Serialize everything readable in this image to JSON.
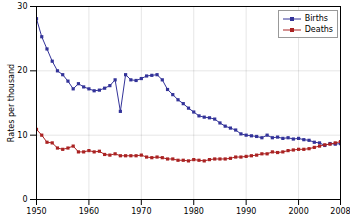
{
  "chart_data": {
    "type": "line",
    "y_label": "Rates per thousand",
    "x": [
      1950,
      1951,
      1952,
      1953,
      1954,
      1955,
      1956,
      1957,
      1958,
      1959,
      1960,
      1961,
      1962,
      1963,
      1964,
      1965,
      1966,
      1967,
      1968,
      1969,
      1970,
      1971,
      1972,
      1973,
      1974,
      1975,
      1976,
      1977,
      1978,
      1979,
      1980,
      1981,
      1982,
      1983,
      1984,
      1985,
      1986,
      1987,
      1988,
      1989,
      1990,
      1991,
      1992,
      1993,
      1994,
      1995,
      1996,
      1997,
      1998,
      1999,
      2000,
      2001,
      2002,
      2003,
      2004,
      2005,
      2006,
      2007,
      2008
    ],
    "series": [
      {
        "name": "Births",
        "color": "#333399",
        "marker": "square",
        "line_style": "solid",
        "values": [
          28.1,
          25.3,
          23.4,
          21.5,
          20.0,
          19.4,
          18.4,
          17.2,
          18.0,
          17.5,
          17.2,
          16.9,
          17.0,
          17.3,
          17.7,
          18.6,
          13.7,
          19.4,
          18.6,
          18.5,
          18.8,
          19.2,
          19.3,
          19.4,
          18.6,
          17.1,
          16.3,
          15.5,
          14.9,
          14.2,
          13.6,
          13.0,
          12.8,
          12.7,
          12.5,
          11.9,
          11.4,
          11.1,
          10.8,
          10.2,
          10.0,
          9.9,
          9.8,
          9.6,
          10.0,
          9.6,
          9.7,
          9.5,
          9.6,
          9.4,
          9.5,
          9.3,
          9.2,
          8.9,
          8.8,
          8.4,
          8.7,
          8.6,
          8.7
        ]
      },
      {
        "name": "Deaths",
        "color": "#aa2222",
        "marker": "square",
        "line_style": "solid",
        "values": [
          10.9,
          10.0,
          8.9,
          8.8,
          8.0,
          7.8,
          8.0,
          8.3,
          7.4,
          7.4,
          7.6,
          7.4,
          7.5,
          7.0,
          6.9,
          7.1,
          6.8,
          6.8,
          6.8,
          6.8,
          6.9,
          6.6,
          6.5,
          6.6,
          6.5,
          6.3,
          6.3,
          6.1,
          6.1,
          6.0,
          6.2,
          6.1,
          6.0,
          6.2,
          6.3,
          6.3,
          6.3,
          6.4,
          6.6,
          6.6,
          6.7,
          6.8,
          6.9,
          7.1,
          7.1,
          7.4,
          7.3,
          7.4,
          7.6,
          7.7,
          7.8,
          7.8,
          7.9,
          8.1,
          8.3,
          8.5,
          8.6,
          8.8,
          9.0
        ]
      }
    ],
    "xlim": [
      1950,
      2008
    ],
    "xticks": [
      1950,
      1960,
      1970,
      1980,
      1990,
      2000,
      2008
    ],
    "ylim": [
      0,
      30
    ],
    "yticks": [
      0,
      10,
      20,
      30
    ],
    "grid": true,
    "legend": "top-right"
  }
}
